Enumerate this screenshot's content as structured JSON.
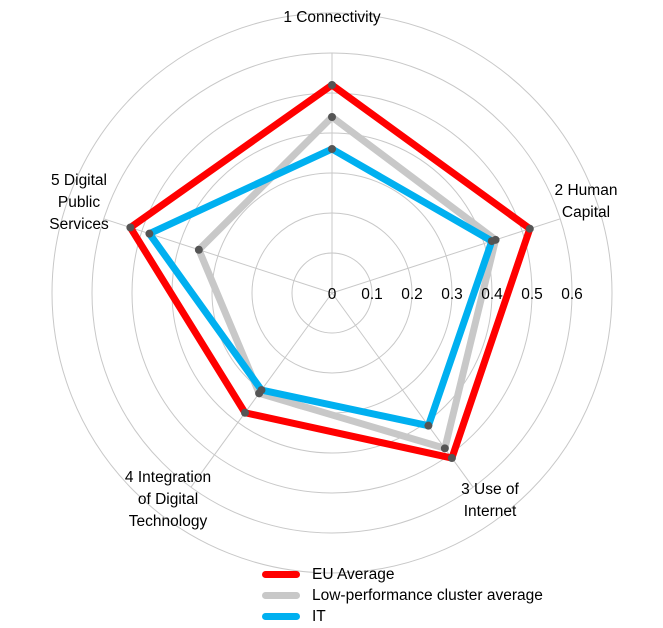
{
  "chart_data": {
    "type": "radar",
    "axes": [
      "1 Connectivity",
      "2 Human Capital",
      "3 Use of Internet",
      "4 Integration of Digital Technology",
      "5 Digital Public Services"
    ],
    "axis_label_lines": [
      [
        "1 Connectivity"
      ],
      [
        "2 Human",
        "Capital"
      ],
      [
        "3 Use of",
        "Internet"
      ],
      [
        "4 Integration",
        "of Digital",
        "Technology"
      ],
      [
        "5 Digital",
        "Public",
        "Services"
      ]
    ],
    "r_ticks": [
      "0",
      "0.1",
      "0.2",
      "0.3",
      "0.4",
      "0.5",
      "0.6"
    ],
    "rlim": [
      0,
      0.6
    ],
    "grid": true,
    "legend_position": "bottom",
    "series": [
      {
        "name": "EU Average",
        "color": "#ff0000",
        "values": [
          0.52,
          0.52,
          0.51,
          0.37,
          0.53
        ]
      },
      {
        "name": "Low-performance cluster average",
        "color": "#c8c8c8",
        "values": [
          0.44,
          0.43,
          0.48,
          0.31,
          0.35
        ]
      },
      {
        "name": "IT",
        "color": "#00b0f0",
        "values": [
          0.36,
          0.42,
          0.41,
          0.3,
          0.48
        ]
      }
    ]
  }
}
